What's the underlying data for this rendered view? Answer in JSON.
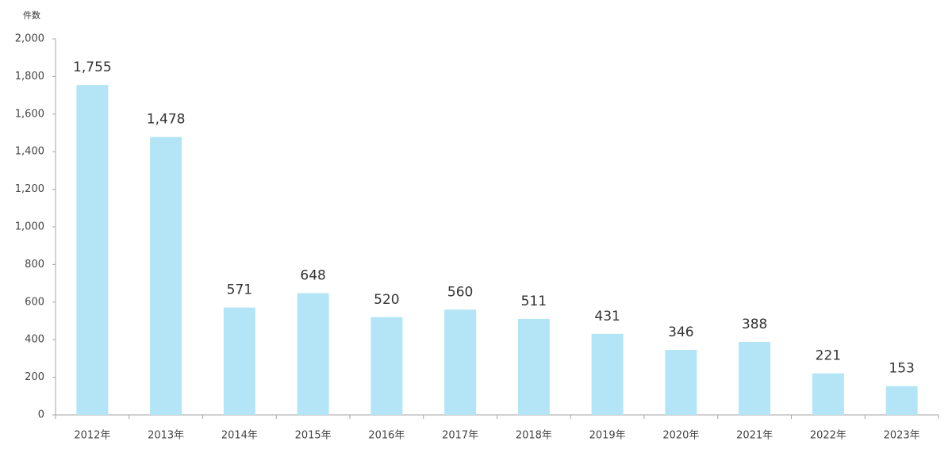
{
  "chart_data": {
    "type": "bar",
    "y_label": "件数",
    "categories": [
      "2012年",
      "2013年",
      "2014年",
      "2015年",
      "2016年",
      "2017年",
      "2018年",
      "2019年",
      "2020年",
      "2021年",
      "2022年",
      "2023年"
    ],
    "values": [
      1755,
      1478,
      571,
      648,
      520,
      560,
      511,
      431,
      346,
      388,
      221,
      153
    ],
    "value_labels": [
      "1,755",
      "1,478",
      "571",
      "648",
      "520",
      "560",
      "511",
      "431",
      "346",
      "388",
      "221",
      "153"
    ],
    "color": "#b3e5f7",
    "ylim": [
      0,
      2000
    ],
    "yticks": [
      0,
      200,
      400,
      600,
      800,
      {
        "value": 1000,
        "label": "1,000"
      },
      {
        "value": 1200,
        "label": "1,200"
      },
      {
        "value": 1400,
        "label": "1,400"
      },
      {
        "value": 1600,
        "label": "1,600"
      },
      {
        "value": 1800,
        "label": "1,800"
      },
      {
        "value": 2000,
        "label": "2,000"
      }
    ],
    "grid": false
  }
}
